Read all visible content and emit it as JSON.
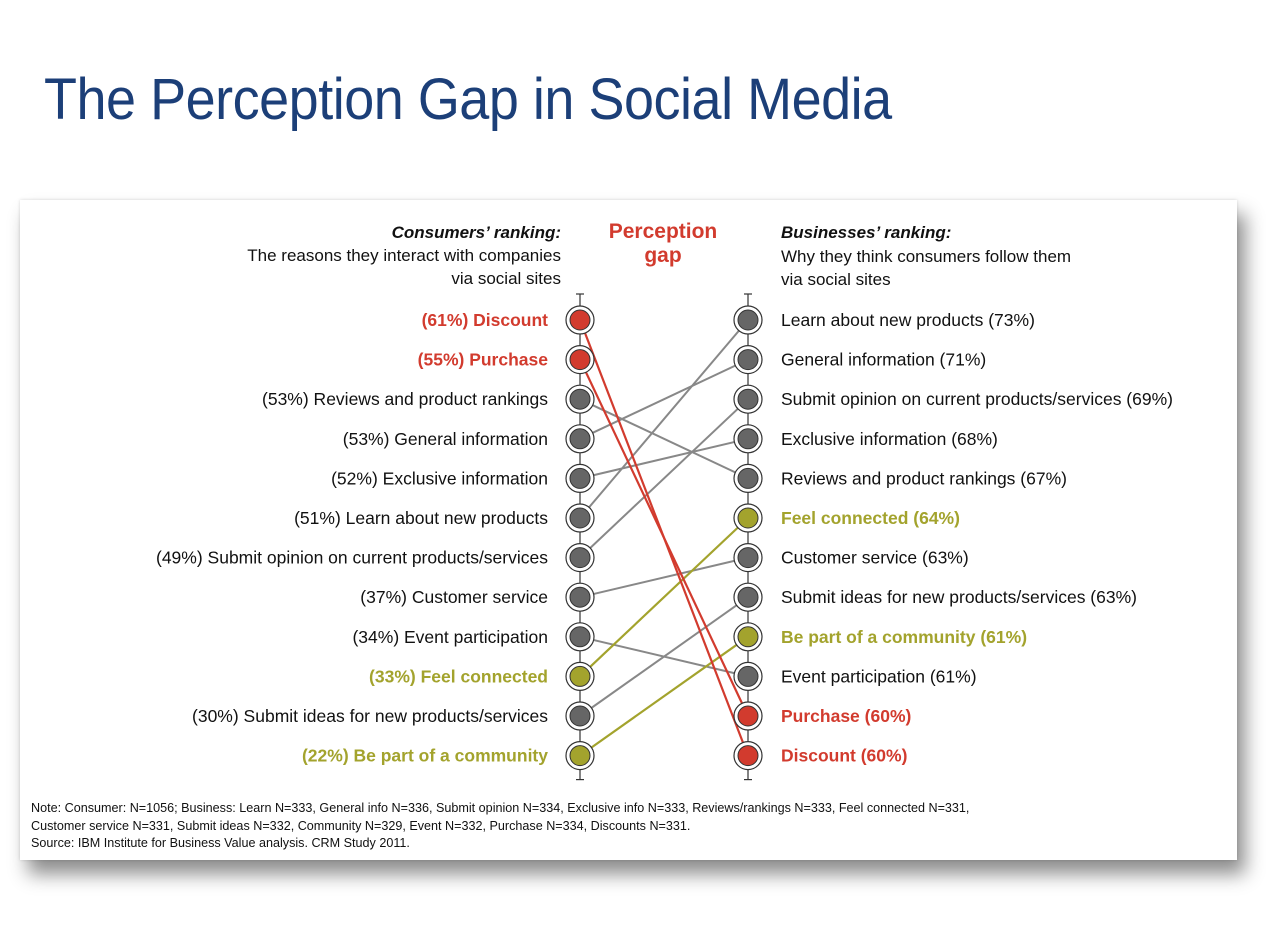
{
  "page_title": "The Perception Gap in Social Media",
  "colors": {
    "title": "#1c3f78",
    "red": "#d23b2e",
    "olive": "#a3a32d",
    "gray": "#666666"
  },
  "chart_data": {
    "type": "slope",
    "left_header": {
      "title": "Consumers’ ranking:",
      "line1": "The reasons they interact with companies",
      "line2": "via social sites"
    },
    "center_title": {
      "line1": "Perception",
      "line2": "gap"
    },
    "right_header": {
      "title": "Businesses’ ranking:",
      "line1": "Why they think consumers follow them",
      "line2": "via social sites"
    },
    "left_items": [
      {
        "label": "(61%) Discount",
        "group": "red"
      },
      {
        "label": "(55%) Purchase",
        "group": "red"
      },
      {
        "label": "(53%) Reviews and product rankings",
        "group": "gray"
      },
      {
        "label": "(53%) General information",
        "group": "gray"
      },
      {
        "label": "(52%) Exclusive information",
        "group": "gray"
      },
      {
        "label": "(51%) Learn about new products",
        "group": "gray"
      },
      {
        "label": "(49%) Submit opinion on current products/services",
        "group": "gray"
      },
      {
        "label": "(37%) Customer service",
        "group": "gray"
      },
      {
        "label": "(34%) Event participation",
        "group": "gray"
      },
      {
        "label": "(33%) Feel connected",
        "group": "olive"
      },
      {
        "label": "(30%) Submit ideas for new products/services",
        "group": "gray"
      },
      {
        "label": "(22%) Be part of a community",
        "group": "olive"
      }
    ],
    "right_items": [
      {
        "label": "Learn about new products (73%)",
        "group": "gray"
      },
      {
        "label": "General information (71%)",
        "group": "gray"
      },
      {
        "label": "Submit opinion on current products/services (69%)",
        "group": "gray"
      },
      {
        "label": "Exclusive information (68%)",
        "group": "gray"
      },
      {
        "label": "Reviews and product rankings (67%)",
        "group": "gray"
      },
      {
        "label": "Feel connected (64%)",
        "group": "olive"
      },
      {
        "label": "Customer service (63%)",
        "group": "gray"
      },
      {
        "label": "Submit ideas for new products/services (63%)",
        "group": "gray"
      },
      {
        "label": "Be part of a community (61%)",
        "group": "olive"
      },
      {
        "label": "Event participation (61%)",
        "group": "gray"
      },
      {
        "label": "Purchase (60%)",
        "group": "red"
      },
      {
        "label": "Discount (60%)",
        "group": "red"
      }
    ],
    "links": [
      {
        "from": 0,
        "to": 11,
        "group": "red"
      },
      {
        "from": 1,
        "to": 10,
        "group": "red"
      },
      {
        "from": 2,
        "to": 4,
        "group": "gray"
      },
      {
        "from": 3,
        "to": 1,
        "group": "gray"
      },
      {
        "from": 4,
        "to": 3,
        "group": "gray"
      },
      {
        "from": 5,
        "to": 0,
        "group": "gray"
      },
      {
        "from": 6,
        "to": 2,
        "group": "gray"
      },
      {
        "from": 7,
        "to": 6,
        "group": "gray"
      },
      {
        "from": 8,
        "to": 9,
        "group": "gray"
      },
      {
        "from": 9,
        "to": 5,
        "group": "olive"
      },
      {
        "from": 10,
        "to": 7,
        "group": "gray"
      },
      {
        "from": 11,
        "to": 8,
        "group": "olive"
      }
    ]
  },
  "note": {
    "line1": "Note: Consumer: N=1056; Business: Learn N=333, General info N=336, Submit opinion N=334, Exclusive info N=333, Reviews/rankings N=333, Feel connected N=331,",
    "line2": "Customer service N=331, Submit ideas N=332, Community N=329, Event N=332, Purchase N=334, Discounts N=331.",
    "source": "Source: IBM Institute for Business Value analysis. CRM Study 2011."
  }
}
